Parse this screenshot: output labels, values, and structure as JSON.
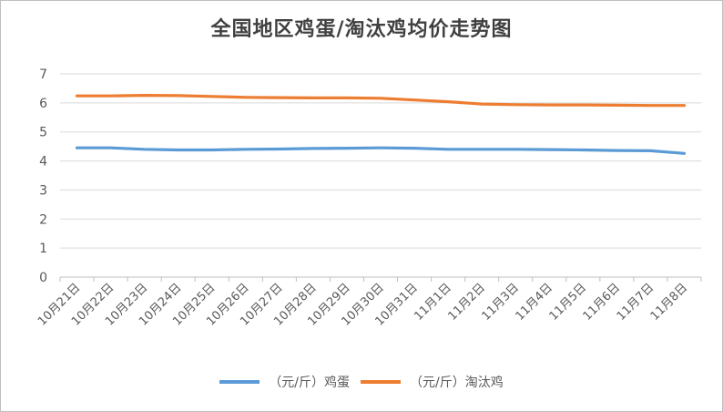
{
  "chart_data": {
    "type": "line",
    "title": "全国地区鸡蛋/淘汰鸡均价走势图",
    "categories": [
      "10月21日",
      "10月22日",
      "10月23日",
      "10月24日",
      "10月25日",
      "10月26日",
      "10月27日",
      "10月28日",
      "10月29日",
      "10月30日",
      "10月31日",
      "11月1日",
      "11月2日",
      "11月3日",
      "11月4日",
      "11月5日",
      "11月6日",
      "11月7日",
      "11月8日"
    ],
    "ylim": [
      0,
      7
    ],
    "yticks": [
      0,
      1,
      2,
      3,
      4,
      5,
      6,
      7
    ],
    "grid": true,
    "legend_position": "bottom",
    "series": [
      {
        "name": "（元/斤）鸡蛋",
        "color": "#5b9bd5",
        "values": [
          4.45,
          4.45,
          4.4,
          4.38,
          4.38,
          4.4,
          4.41,
          4.43,
          4.44,
          4.45,
          4.44,
          4.4,
          4.4,
          4.4,
          4.39,
          4.38,
          4.36,
          4.35,
          4.26
        ]
      },
      {
        "name": "（元/斤）淘汰鸡",
        "color": "#ed7d31",
        "values": [
          6.24,
          6.24,
          6.26,
          6.25,
          6.22,
          6.19,
          6.18,
          6.17,
          6.17,
          6.16,
          6.1,
          6.04,
          5.96,
          5.94,
          5.93,
          5.93,
          5.92,
          5.91,
          5.91
        ]
      }
    ]
  }
}
